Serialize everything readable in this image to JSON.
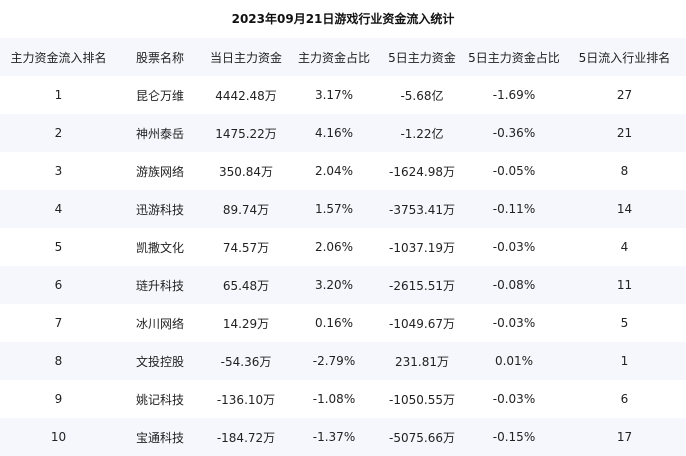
{
  "title": "2023年09月21日游戏行业资金流入统计",
  "table": {
    "headers": [
      "主力资金流入排名",
      "股票名称",
      "当日主力资金",
      "主力资金占比",
      "5日主力资金",
      "5日主力资金占比",
      "5日流入行业排名"
    ],
    "rows": [
      [
        "1",
        "昆仑万维",
        "4442.48万",
        "3.17%",
        "-5.68亿",
        "-1.69%",
        "27"
      ],
      [
        "2",
        "神州泰岳",
        "1475.22万",
        "4.16%",
        "-1.22亿",
        "-0.36%",
        "21"
      ],
      [
        "3",
        "游族网络",
        "350.84万",
        "2.04%",
        "-1624.98万",
        "-0.05%",
        "8"
      ],
      [
        "4",
        "迅游科技",
        "89.74万",
        "1.57%",
        "-3753.41万",
        "-0.11%",
        "14"
      ],
      [
        "5",
        "凯撒文化",
        "74.57万",
        "2.06%",
        "-1037.19万",
        "-0.03%",
        "4"
      ],
      [
        "6",
        "琏升科技",
        "65.48万",
        "3.20%",
        "-2615.51万",
        "-0.08%",
        "11"
      ],
      [
        "7",
        "冰川网络",
        "14.29万",
        "0.16%",
        "-1049.67万",
        "-0.03%",
        "5"
      ],
      [
        "8",
        "文投控股",
        "-54.36万",
        "-2.79%",
        "231.81万",
        "0.01%",
        "1"
      ],
      [
        "9",
        "姚记科技",
        "-136.10万",
        "-1.08%",
        "-1050.55万",
        "-0.03%",
        "6"
      ],
      [
        "10",
        "宝通科技",
        "-184.72万",
        "-1.37%",
        "-5075.66万",
        "-0.15%",
        "17"
      ]
    ]
  }
}
